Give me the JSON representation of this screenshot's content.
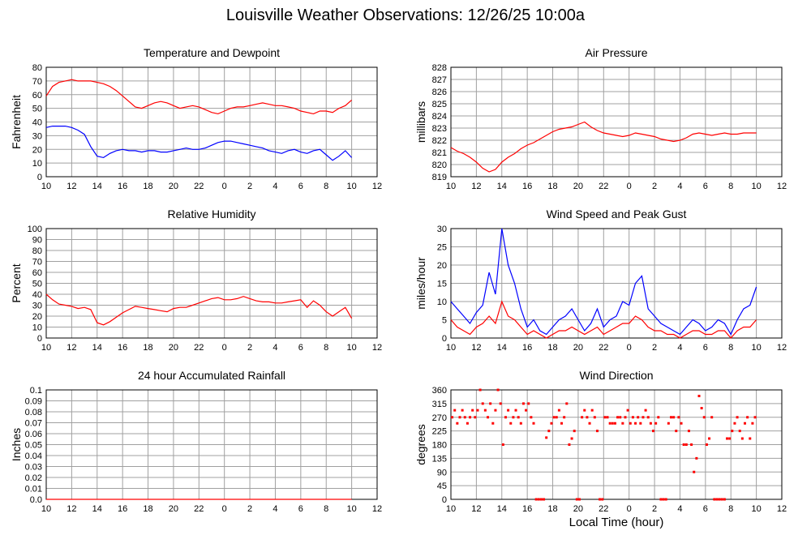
{
  "page": {
    "title": "Louisville Weather Observations: 12/26/25 10:00a",
    "x_axis_title": "Local Time (hour)",
    "colors": {
      "red": "#ff0000",
      "blue": "#0000ff",
      "grid": "#a0a0a0",
      "frame": "#000000"
    }
  },
  "chart_data": [
    {
      "id": "temperature",
      "type": "line",
      "title": "Temperature and Dewpoint",
      "xlabel": "",
      "ylabel": "Fahrenheit",
      "xticks": [
        "10",
        "12",
        "14",
        "16",
        "18",
        "20",
        "22",
        "0",
        "2",
        "4",
        "6",
        "8",
        "10",
        "12"
      ],
      "xlim": [
        0,
        26
      ],
      "ylim": [
        0,
        80
      ],
      "yticks": [
        0,
        10,
        20,
        30,
        40,
        50,
        60,
        70,
        80
      ],
      "grid": true,
      "x_unit": "hours since 10:00 on 12/25 (tick labels show local hour)",
      "series": [
        {
          "name": "",
          "color": "#ff0000",
          "x": [
            0,
            0.5,
            1,
            1.5,
            2,
            2.5,
            3,
            3.5,
            4,
            4.5,
            5,
            5.5,
            6,
            6.5,
            7,
            7.5,
            8,
            8.5,
            9,
            9.5,
            10,
            10.5,
            11,
            11.5,
            12,
            12.5,
            13,
            13.5,
            14,
            14.5,
            15,
            15.5,
            16,
            16.5,
            17,
            17.5,
            18,
            18.5,
            19,
            19.5,
            20,
            20.5,
            21,
            21.5,
            22,
            22.5,
            23,
            23.5,
            24
          ],
          "y": [
            59,
            66,
            69,
            70,
            71,
            70,
            70,
            70,
            69,
            68,
            66,
            63,
            59,
            55,
            51,
            50,
            52,
            54,
            55,
            54,
            52,
            50,
            51,
            52,
            51,
            49,
            47,
            46,
            48,
            50,
            51,
            51,
            52,
            53,
            54,
            53,
            52,
            52,
            51,
            50,
            48,
            47,
            46,
            48,
            48,
            47,
            50,
            52,
            56
          ]
        },
        {
          "name": "",
          "color": "#0000ff",
          "x": [
            0,
            0.5,
            1,
            1.5,
            2,
            2.5,
            3,
            3.5,
            4,
            4.5,
            5,
            5.5,
            6,
            6.5,
            7,
            7.5,
            8,
            8.5,
            9,
            9.5,
            10,
            10.5,
            11,
            11.5,
            12,
            12.5,
            13,
            13.5,
            14,
            14.5,
            15,
            15.5,
            16,
            16.5,
            17,
            17.5,
            18,
            18.5,
            19,
            19.5,
            20,
            20.5,
            21,
            21.5,
            22,
            22.5,
            23,
            23.5,
            24
          ],
          "y": [
            36,
            37,
            37,
            37,
            36,
            34,
            31,
            22,
            15,
            14,
            17,
            19,
            20,
            19,
            19,
            18,
            19,
            19,
            18,
            18,
            19,
            20,
            21,
            20,
            20,
            21,
            23,
            25,
            26,
            26,
            25,
            24,
            23,
            22,
            21,
            19,
            18,
            17,
            19,
            20,
            18,
            17,
            19,
            20,
            16,
            12,
            15,
            19,
            14
          ]
        }
      ]
    },
    {
      "id": "pressure",
      "type": "line",
      "title": "Air Pressure",
      "xlabel": "",
      "ylabel": "millibars",
      "xticks": [
        "10",
        "12",
        "14",
        "16",
        "18",
        "20",
        "22",
        "0",
        "2",
        "4",
        "6",
        "8",
        "10",
        "12"
      ],
      "xlim": [
        0,
        26
      ],
      "ylim": [
        819,
        828
      ],
      "yticks": [
        819,
        820,
        821,
        822,
        823,
        824,
        825,
        826,
        827,
        828
      ],
      "grid": true,
      "x_unit": "hours since 10:00 on 12/25 (tick labels show local hour)",
      "series": [
        {
          "name": "",
          "color": "#ff0000",
          "x": [
            0,
            0.5,
            1,
            1.5,
            2,
            2.5,
            3,
            3.5,
            4,
            4.5,
            5,
            5.5,
            6,
            6.5,
            7,
            7.5,
            8,
            8.5,
            9,
            9.5,
            10,
            10.5,
            11,
            11.5,
            12,
            12.5,
            13,
            13.5,
            14,
            14.5,
            15,
            15.5,
            16,
            16.5,
            17,
            17.5,
            18,
            18.5,
            19,
            19.5,
            20,
            20.5,
            21,
            21.5,
            22,
            22.5,
            23,
            23.5,
            24
          ],
          "y": [
            821.4,
            821.1,
            820.9,
            820.6,
            820.2,
            819.7,
            819.4,
            819.6,
            820.2,
            820.6,
            820.9,
            821.3,
            821.6,
            821.8,
            822.1,
            822.4,
            822.7,
            822.9,
            823.0,
            823.1,
            823.3,
            823.5,
            823.1,
            822.8,
            822.6,
            822.5,
            822.4,
            822.3,
            822.4,
            822.6,
            822.5,
            822.4,
            822.3,
            822.1,
            822.0,
            821.9,
            822.0,
            822.2,
            822.5,
            822.6,
            822.5,
            822.4,
            822.5,
            822.6,
            822.5,
            822.5,
            822.6,
            822.6,
            822.6
          ]
        }
      ]
    },
    {
      "id": "humidity",
      "type": "line",
      "title": "Relative Humidity",
      "xlabel": "",
      "ylabel": "Percent",
      "xticks": [
        "10",
        "12",
        "14",
        "16",
        "18",
        "20",
        "22",
        "0",
        "2",
        "4",
        "6",
        "8",
        "10",
        "12"
      ],
      "xlim": [
        0,
        26
      ],
      "ylim": [
        0,
        100
      ],
      "yticks": [
        0,
        10,
        20,
        30,
        40,
        50,
        60,
        70,
        80,
        90,
        100
      ],
      "grid": true,
      "x_unit": "hours since 10:00 on 12/25 (tick labels show local hour)",
      "series": [
        {
          "name": "",
          "color": "#ff0000",
          "x": [
            0,
            0.5,
            1,
            1.5,
            2,
            2.5,
            3,
            3.5,
            4,
            4.5,
            5,
            5.5,
            6,
            6.5,
            7,
            7.5,
            8,
            8.5,
            9,
            9.5,
            10,
            10.5,
            11,
            11.5,
            12,
            12.5,
            13,
            13.5,
            14,
            14.5,
            15,
            15.5,
            16,
            16.5,
            17,
            17.5,
            18,
            18.5,
            19,
            19.5,
            20,
            20.5,
            21,
            21.5,
            22,
            22.5,
            23,
            23.5,
            24
          ],
          "y": [
            40,
            35,
            31,
            30,
            29,
            27,
            28,
            26,
            14,
            12,
            15,
            19,
            23,
            26,
            29,
            28,
            27,
            26,
            25,
            24,
            27,
            28,
            28,
            30,
            32,
            34,
            36,
            37,
            35,
            35,
            36,
            38,
            36,
            34,
            33,
            33,
            32,
            32,
            33,
            34,
            35,
            28,
            34,
            30,
            24,
            20,
            24,
            28,
            18
          ]
        }
      ]
    },
    {
      "id": "wind-speed",
      "type": "line",
      "title": "Wind Speed and Peak Gust",
      "xlabel": "",
      "ylabel": "miles/hour",
      "xticks": [
        "10",
        "12",
        "14",
        "16",
        "18",
        "20",
        "22",
        "0",
        "2",
        "4",
        "6",
        "8",
        "10",
        "12"
      ],
      "xlim": [
        0,
        26
      ],
      "ylim": [
        0,
        30
      ],
      "yticks": [
        0,
        5,
        10,
        15,
        20,
        25,
        30
      ],
      "grid": true,
      "x_unit": "hours since 10:00 on 12/25 (tick labels show local hour)",
      "series": [
        {
          "name": "",
          "color": "#0000ff",
          "x": [
            0,
            0.5,
            1,
            1.5,
            2,
            2.5,
            3,
            3.5,
            4,
            4.5,
            5,
            5.5,
            6,
            6.5,
            7,
            7.5,
            8,
            8.5,
            9,
            9.5,
            10,
            10.5,
            11,
            11.5,
            12,
            12.5,
            13,
            13.5,
            14,
            14.5,
            15,
            15.5,
            16,
            16.5,
            17,
            17.5,
            18,
            18.5,
            19,
            19.5,
            20,
            20.5,
            21,
            21.5,
            22,
            22.5,
            23,
            23.5,
            24
          ],
          "y": [
            10,
            8,
            6,
            4,
            7,
            9,
            18,
            12,
            30,
            20,
            15,
            8,
            3,
            5,
            2,
            1,
            3,
            5,
            6,
            8,
            5,
            2,
            4,
            8,
            3,
            5,
            6,
            10,
            9,
            15,
            17,
            8,
            6,
            4,
            3,
            2,
            1,
            3,
            5,
            4,
            2,
            3,
            5,
            4,
            1,
            5,
            8,
            9,
            14
          ]
        },
        {
          "name": "",
          "color": "#ff0000",
          "x": [
            0,
            0.5,
            1,
            1.5,
            2,
            2.5,
            3,
            3.5,
            4,
            4.5,
            5,
            5.5,
            6,
            6.5,
            7,
            7.5,
            8,
            8.5,
            9,
            9.5,
            10,
            10.5,
            11,
            11.5,
            12,
            12.5,
            13,
            13.5,
            14,
            14.5,
            15,
            15.5,
            16,
            16.5,
            17,
            17.5,
            18,
            18.5,
            19,
            19.5,
            20,
            20.5,
            21,
            21.5,
            22,
            22.5,
            23,
            23.5,
            24
          ],
          "y": [
            5,
            3,
            2,
            1,
            3,
            4,
            6,
            4,
            10,
            6,
            5,
            3,
            1,
            2,
            1,
            0,
            1,
            2,
            2,
            3,
            2,
            1,
            2,
            3,
            1,
            2,
            3,
            4,
            4,
            6,
            5,
            3,
            2,
            2,
            1,
            1,
            0,
            1,
            2,
            2,
            1,
            1,
            2,
            2,
            0,
            2,
            3,
            3,
            5
          ]
        }
      ]
    },
    {
      "id": "rainfall",
      "type": "line",
      "title": "24 hour Accumulated Rainfall",
      "xlabel": "",
      "ylabel": "Inches",
      "xticks": [
        "10",
        "12",
        "14",
        "16",
        "18",
        "20",
        "22",
        "0",
        "2",
        "4",
        "6",
        "8",
        "10",
        "12"
      ],
      "xlim": [
        0,
        26
      ],
      "ylim": [
        0,
        0.1
      ],
      "yticks": [
        "0.0",
        "0.01",
        "0.02",
        "0.03",
        "0.04",
        "0.05",
        "0.06",
        "0.07",
        "0.08",
        "0.09",
        "0.1"
      ],
      "grid": true,
      "x_unit": "hours since 10:00 on 12/25 (tick labels show local hour)",
      "series": [
        {
          "name": "",
          "color": "#ff0000",
          "x": [
            0,
            24
          ],
          "y": [
            0,
            0
          ]
        }
      ]
    },
    {
      "id": "wind-direction",
      "type": "scatter",
      "title": "Wind Direction",
      "xlabel": "Local Time (hour)",
      "ylabel": "degrees",
      "xticks": [
        "10",
        "12",
        "14",
        "16",
        "18",
        "20",
        "22",
        "0",
        "2",
        "4",
        "6",
        "8",
        "10",
        "12"
      ],
      "xlim": [
        0,
        26
      ],
      "ylim": [
        0,
        360
      ],
      "yticks": [
        0,
        45,
        90,
        135,
        180,
        225,
        270,
        315,
        360
      ],
      "grid": true,
      "x_unit": "hours since 10:00 on 12/25 (tick labels show local hour)",
      "series": [
        {
          "name": "",
          "color": "#ff0000",
          "x": [
            0.1,
            0.3,
            0.5,
            0.7,
            0.9,
            1.1,
            1.3,
            1.5,
            1.7,
            1.9,
            2.1,
            2.3,
            2.5,
            2.7,
            2.9,
            3.1,
            3.3,
            3.5,
            3.7,
            3.9,
            4.1,
            4.3,
            4.5,
            4.7,
            4.9,
            5.1,
            5.3,
            5.5,
            5.7,
            5.9,
            6.1,
            6.3,
            6.5,
            6.7,
            6.9,
            7.1,
            7.3,
            7.5,
            7.7,
            7.9,
            8.1,
            8.3,
            8.5,
            8.7,
            8.9,
            9.1,
            9.3,
            9.5,
            9.7,
            9.9,
            10.1,
            10.3,
            10.5,
            10.7,
            10.9,
            11.1,
            11.3,
            11.5,
            11.7,
            11.9,
            12.1,
            12.3,
            12.5,
            12.7,
            12.9,
            13.1,
            13.3,
            13.5,
            13.7,
            13.9,
            14.1,
            14.3,
            14.5,
            14.7,
            14.9,
            15.1,
            15.3,
            15.5,
            15.7,
            15.9,
            16.1,
            16.3,
            16.5,
            16.7,
            16.9,
            17.1,
            17.3,
            17.5,
            17.7,
            17.9,
            18.1,
            18.3,
            18.5,
            18.7,
            18.9,
            19.1,
            19.3,
            19.5,
            19.7,
            19.9,
            20.1,
            20.3,
            20.5,
            20.7,
            20.9,
            21.1,
            21.3,
            21.5,
            21.7,
            21.9,
            22.1,
            22.3,
            22.5,
            22.7,
            22.9,
            23.1,
            23.3,
            23.5,
            23.7,
            23.9
          ],
          "y": [
            270,
            293,
            250,
            270,
            293,
            270,
            250,
            270,
            293,
            270,
            293,
            360,
            315,
            293,
            270,
            315,
            250,
            293,
            360,
            315,
            180,
            270,
            293,
            250,
            270,
            293,
            270,
            250,
            315,
            293,
            315,
            270,
            250,
            0,
            0,
            0,
            0,
            203,
            225,
            250,
            270,
            270,
            293,
            250,
            270,
            315,
            180,
            200,
            225,
            0,
            0,
            270,
            293,
            270,
            250,
            293,
            270,
            225,
            0,
            0,
            270,
            270,
            250,
            250,
            250,
            270,
            270,
            250,
            270,
            293,
            250,
            270,
            250,
            270,
            250,
            270,
            293,
            270,
            250,
            225,
            250,
            270,
            0,
            0,
            0,
            250,
            270,
            270,
            225,
            270,
            250,
            180,
            180,
            225,
            180,
            90,
            135,
            340,
            300,
            270,
            180,
            200,
            270,
            0,
            0,
            0,
            0,
            0,
            200,
            200,
            225,
            250,
            270,
            225,
            200,
            250,
            270,
            200,
            250,
            270
          ]
        }
      ]
    }
  ]
}
